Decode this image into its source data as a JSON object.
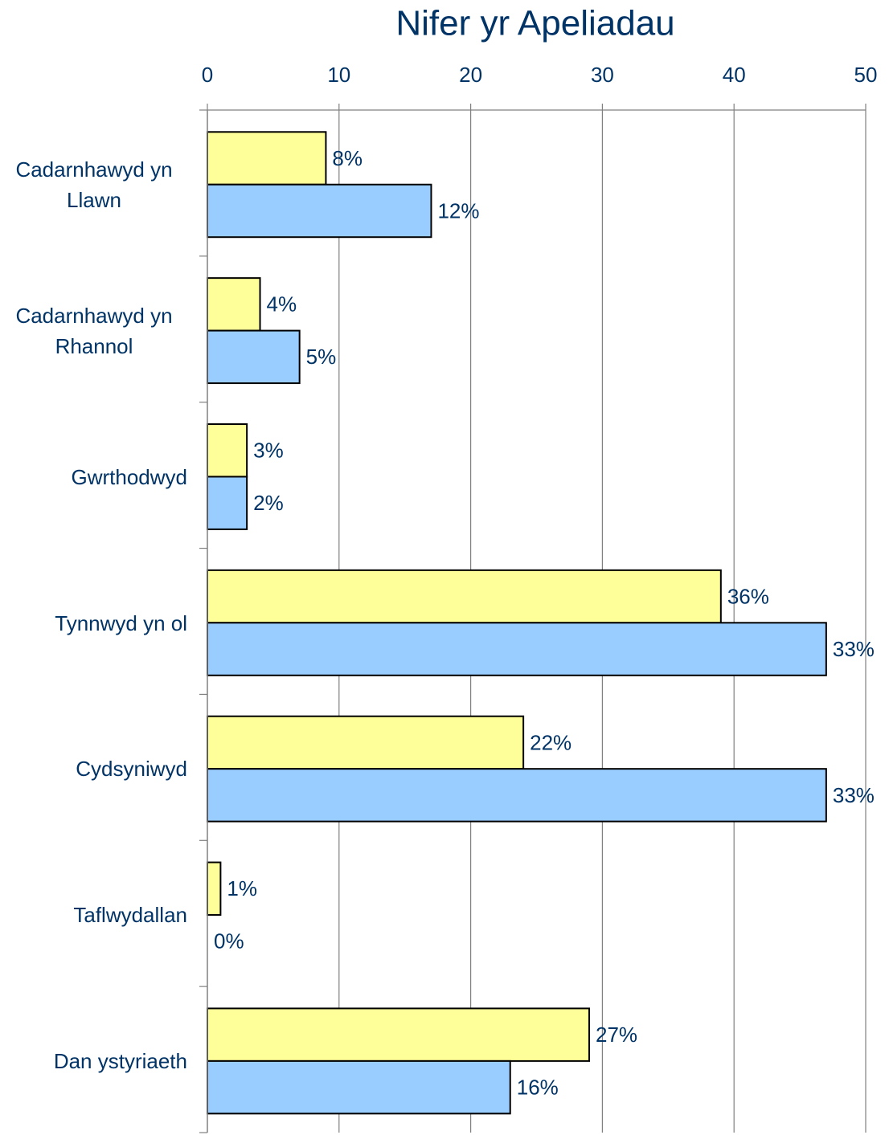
{
  "chart_data": {
    "type": "barh",
    "title": "Nifer yr Apeliadau",
    "categories": [
      "Cadarnhawyd yn Llawn",
      "Cadarnhawyd yn Rhannol",
      "Gwrthodwyd",
      "Tynnwyd yn ol",
      "Cydsyniwyd",
      "Taflwydallan",
      "Dan ystyriaeth"
    ],
    "series": [
      {
        "color": "#ffff99",
        "values": [
          9,
          4,
          3,
          39,
          24,
          1,
          29
        ],
        "data_labels": [
          "8%",
          "4%",
          "3%",
          "36%",
          "22%",
          "1%",
          "27%"
        ]
      },
      {
        "color": "#99ccff",
        "values": [
          17,
          7,
          3,
          47,
          47,
          0,
          23
        ],
        "data_labels": [
          "12%",
          "5%",
          "2%",
          "33%",
          "33%",
          "0%",
          "16%"
        ]
      }
    ],
    "xlim": [
      0,
      50
    ],
    "xticks": [
      0,
      10,
      20,
      30,
      40,
      50
    ],
    "grid": true
  }
}
